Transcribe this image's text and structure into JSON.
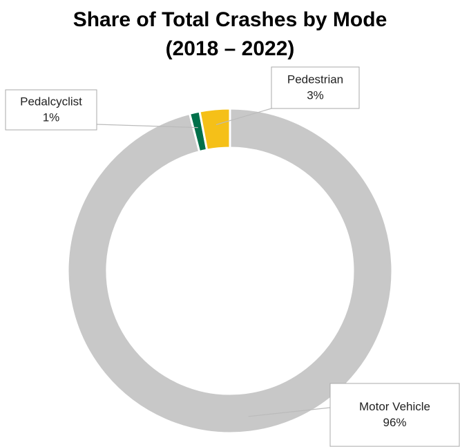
{
  "chart_data": {
    "type": "donut",
    "title": "Share of Total Crashes by Mode",
    "subtitle": "(2018 – 2022)",
    "categories": [
      "Motor Vehicle",
      "Pedalcyclist",
      "Pedestrian"
    ],
    "values": [
      96,
      1,
      3
    ],
    "value_labels": [
      "96%",
      "1%",
      "3%"
    ],
    "colors": [
      "#c8c8c8",
      "#00704a",
      "#f5c018"
    ]
  }
}
